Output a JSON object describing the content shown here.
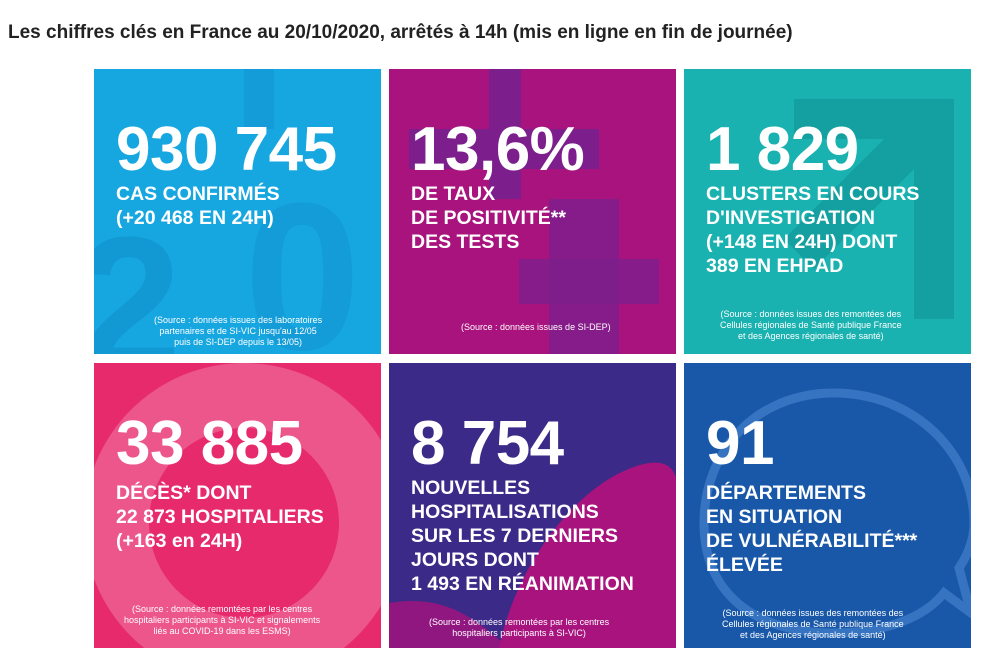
{
  "page": {
    "title": "Les chiffres clés en France au 20/10/2020, arrêtés à 14h (mis en ligne en fin de journée)"
  },
  "colors": {
    "cases": "#16a6e0",
    "positivity": "#a8137e",
    "clusters": "#1ab2b0",
    "deaths": "#e62a6c",
    "hospitalizations": "#3b2a87",
    "departments": "#1958a8"
  },
  "tiles": {
    "cases": {
      "value": "930 745",
      "lines": [
        "CAS CONFIRMÉS",
        "(+20 468 EN 24H)"
      ],
      "source": [
        "(Source : données issues des laboratoires",
        "partenaires et de SI-VIC jusqu'au 12/05",
        "puis de SI-DEP depuis le 13/05)"
      ]
    },
    "positivity": {
      "value": "13,6%",
      "lines": [
        "DE TAUX",
        "DE POSITIVITÉ**",
        "DES TESTS"
      ],
      "source": [
        "(Source : données issues de SI-DEP)"
      ]
    },
    "clusters": {
      "value": "1 829",
      "lines": [
        "CLUSTERS EN COURS",
        "D'INVESTIGATION",
        "(+148 EN 24H) DONT",
        "389 EN EHPAD"
      ],
      "source": [
        "(Source : données issues des remontées des",
        "Cellules régionales de Santé publique France",
        "et des Agences régionales de santé)"
      ]
    },
    "deaths": {
      "value": "33 885",
      "lines": [
        "DÉCÈS* DONT",
        "22 873 HOSPITALIERS",
        "(+163 en 24H)"
      ],
      "source": [
        "(Source : données remontées par les centres",
        "hospitaliers participants à SI-VIC et signalements",
        "liés au COVID-19 dans les ESMS)"
      ]
    },
    "hospitalizations": {
      "value": "8 754",
      "lines": [
        "NOUVELLES",
        "HOSPITALISATIONS",
        "SUR LES 7 DERNIERS",
        "JOURS DONT",
        "1 493 EN RÉANIMATION"
      ],
      "source": [
        "(Source : données remontées par les centres",
        "hospitaliers participants à SI-VIC)"
      ]
    },
    "departments": {
      "value": "91",
      "lines": [
        "DÉPARTEMENTS",
        "EN SITUATION",
        "DE VULNÉRABILITÉ***",
        "ÉLEVÉE"
      ],
      "source": [
        "(Source : données issues des remontées des",
        "Cellules régionales de Santé publique France",
        "et des Agences régionales de santé)"
      ]
    }
  }
}
